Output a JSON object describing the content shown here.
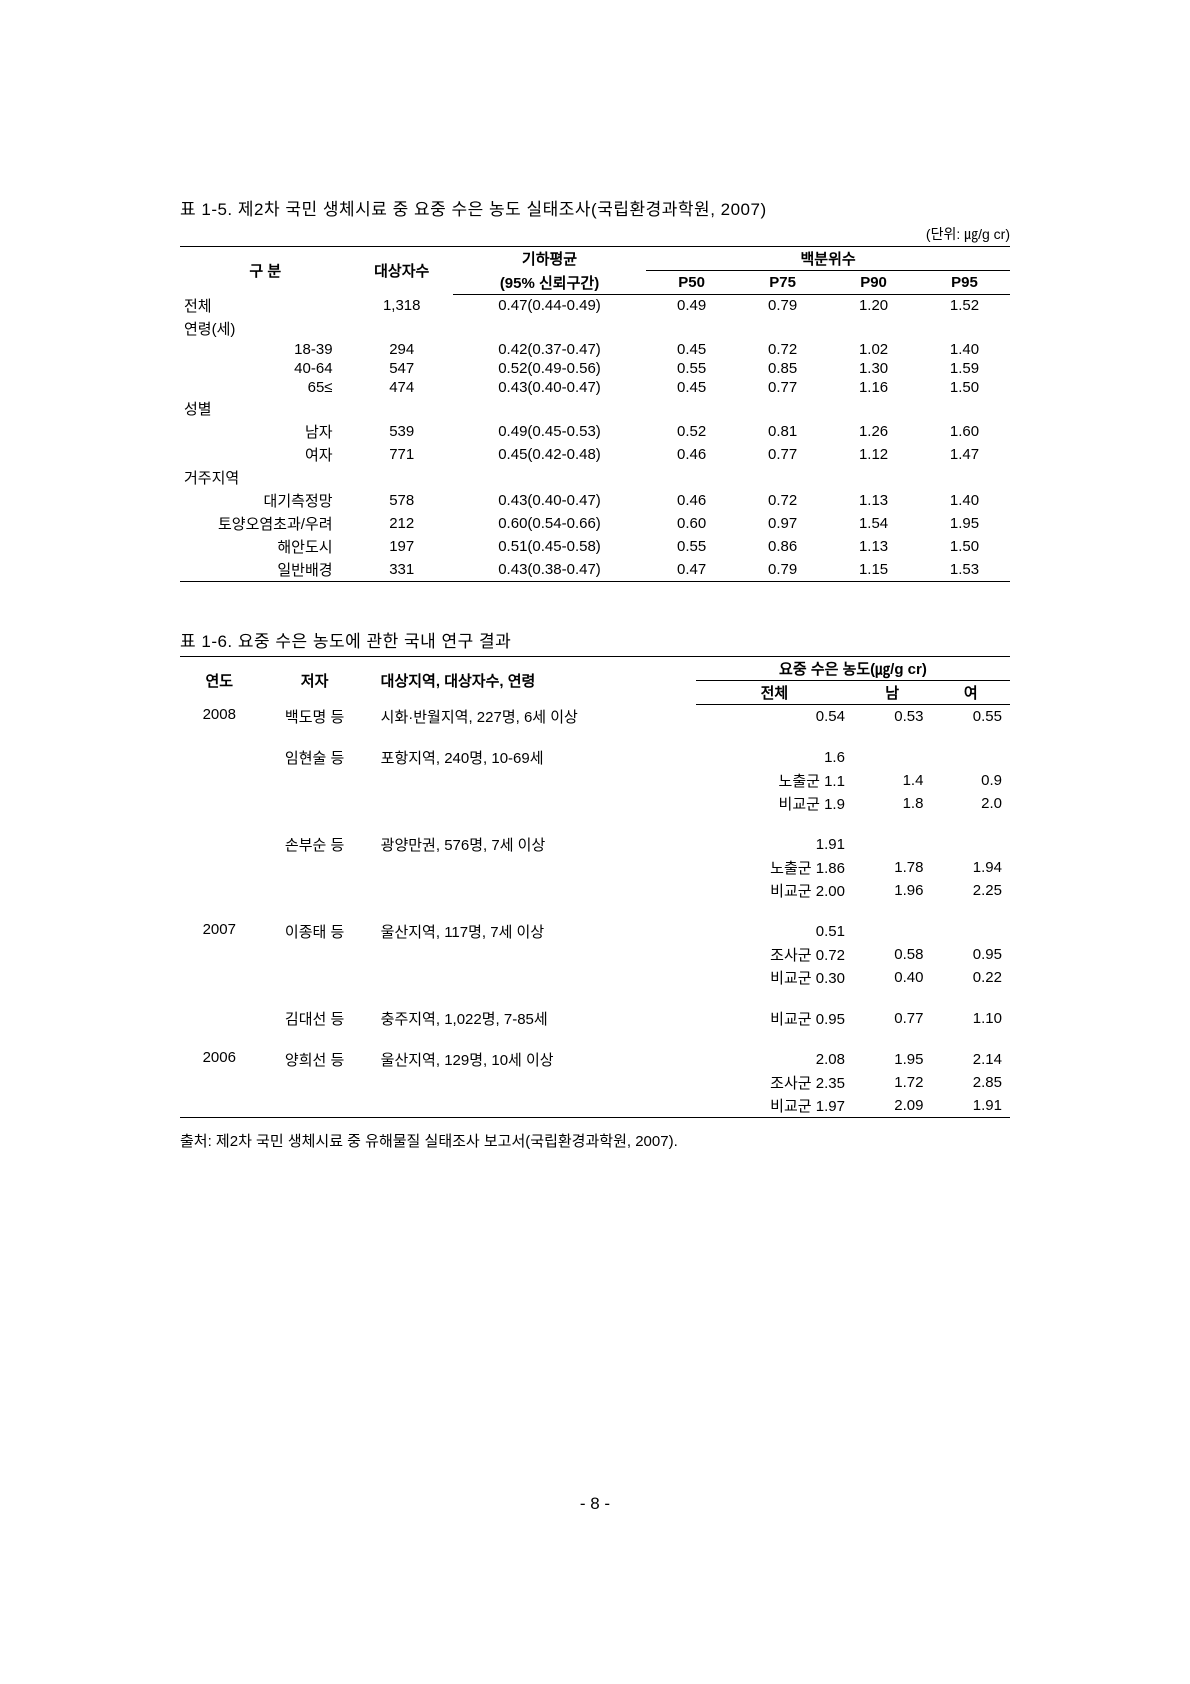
{
  "table1": {
    "title": "표 1-5. 제2차 국민 생체시료 중 요중 수은 농도 실태조사(국립환경과학원, 2007)",
    "unit": "(단위: ㎍/g cr)",
    "headers": {
      "category": "구   분",
      "n": "대상자수",
      "geomean": "기하평균",
      "ci": "(95% 신뢰구간)",
      "percentiles": "백분위수",
      "p50": "P50",
      "p75": "P75",
      "p90": "P90",
      "p95": "P95"
    },
    "rows": [
      {
        "label": "전체",
        "indent": 0,
        "n": "1,318",
        "gm": "0.47(0.44-0.49)",
        "p50": "0.49",
        "p75": "0.79",
        "p90": "1.20",
        "p95": "1.52"
      },
      {
        "label": "연령(세)",
        "indent": 0,
        "n": "",
        "gm": "",
        "p50": "",
        "p75": "",
        "p90": "",
        "p95": ""
      },
      {
        "label": "18-39",
        "indent": 1,
        "n": "294",
        "gm": "0.42(0.37-0.47)",
        "p50": "0.45",
        "p75": "0.72",
        "p90": "1.02",
        "p95": "1.40"
      },
      {
        "label": "40-64",
        "indent": 1,
        "n": "547",
        "gm": "0.52(0.49-0.56)",
        "p50": "0.55",
        "p75": "0.85",
        "p90": "1.30",
        "p95": "1.59"
      },
      {
        "label": "65≤",
        "indent": 1,
        "n": "474",
        "gm": "0.43(0.40-0.47)",
        "p50": "0.45",
        "p75": "0.77",
        "p90": "1.16",
        "p95": "1.50"
      },
      {
        "label": "성별",
        "indent": 0,
        "n": "",
        "gm": "",
        "p50": "",
        "p75": "",
        "p90": "",
        "p95": ""
      },
      {
        "label": "남자",
        "indent": 1,
        "n": "539",
        "gm": "0.49(0.45-0.53)",
        "p50": "0.52",
        "p75": "0.81",
        "p90": "1.26",
        "p95": "1.60"
      },
      {
        "label": "여자",
        "indent": 1,
        "n": "771",
        "gm": "0.45(0.42-0.48)",
        "p50": "0.46",
        "p75": "0.77",
        "p90": "1.12",
        "p95": "1.47"
      },
      {
        "label": "거주지역",
        "indent": 0,
        "n": "",
        "gm": "",
        "p50": "",
        "p75": "",
        "p90": "",
        "p95": ""
      },
      {
        "label": "대기측정망",
        "indent": 1,
        "n": "578",
        "gm": "0.43(0.40-0.47)",
        "p50": "0.46",
        "p75": "0.72",
        "p90": "1.13",
        "p95": "1.40"
      },
      {
        "label": "토양오염초과/우려",
        "indent": 1,
        "n": "212",
        "gm": "0.60(0.54-0.66)",
        "p50": "0.60",
        "p75": "0.97",
        "p90": "1.54",
        "p95": "1.95"
      },
      {
        "label": "해안도시",
        "indent": 1,
        "n": "197",
        "gm": "0.51(0.45-0.58)",
        "p50": "0.55",
        "p75": "0.86",
        "p90": "1.13",
        "p95": "1.50"
      },
      {
        "label": "일반배경",
        "indent": 1,
        "n": "331",
        "gm": "0.43(0.38-0.47)",
        "p50": "0.47",
        "p75": "0.79",
        "p90": "1.15",
        "p95": "1.53"
      }
    ]
  },
  "table2": {
    "title": "표 1-6. 요중 수은 농도에 관한 국내 연구 결과",
    "headers": {
      "year": "연도",
      "author": "저자",
      "desc": "대상지역, 대상자수, 연령",
      "conc": "요중 수은 농도(㎍/g cr)",
      "total": "전체",
      "male": "남",
      "female": "여"
    },
    "rows": [
      {
        "year": "2008",
        "author": "백도명 등",
        "desc": "시화·반월지역, 227명, 6세 이상",
        "total": "0.54",
        "male": "0.53",
        "female": "0.55",
        "pad": false
      },
      {
        "year": "",
        "author": "",
        "desc": "",
        "total": "",
        "male": "",
        "female": "",
        "pad": true
      },
      {
        "year": "",
        "author": "임현술 등",
        "desc": "포항지역, 240명, 10-69세",
        "total": "1.6",
        "male": "",
        "female": "",
        "pad": false
      },
      {
        "year": "",
        "author": "",
        "desc": "",
        "total": "노출군 1.1",
        "male": "1.4",
        "female": "0.9",
        "pad": false
      },
      {
        "year": "",
        "author": "",
        "desc": "",
        "total": "비교군 1.9",
        "male": "1.8",
        "female": "2.0",
        "pad": false
      },
      {
        "year": "",
        "author": "",
        "desc": "",
        "total": "",
        "male": "",
        "female": "",
        "pad": true
      },
      {
        "year": "",
        "author": "손부순 등",
        "desc": "광양만권, 576명, 7세 이상",
        "total": "1.91",
        "male": "",
        "female": "",
        "pad": false
      },
      {
        "year": "",
        "author": "",
        "desc": "",
        "total": "노출군 1.86",
        "male": "1.78",
        "female": "1.94",
        "pad": false
      },
      {
        "year": "",
        "author": "",
        "desc": "",
        "total": "비교군 2.00",
        "male": "1.96",
        "female": "2.25",
        "pad": false
      },
      {
        "year": "",
        "author": "",
        "desc": "",
        "total": "",
        "male": "",
        "female": "",
        "pad": true
      },
      {
        "year": "2007",
        "author": "이종태 등",
        "desc": "울산지역, 117명, 7세 이상",
        "total": "0.51",
        "male": "",
        "female": "",
        "pad": false
      },
      {
        "year": "",
        "author": "",
        "desc": "",
        "total": "조사군 0.72",
        "male": "0.58",
        "female": "0.95",
        "pad": false
      },
      {
        "year": "",
        "author": "",
        "desc": "",
        "total": "비교군 0.30",
        "male": "0.40",
        "female": "0.22",
        "pad": false
      },
      {
        "year": "",
        "author": "",
        "desc": "",
        "total": "",
        "male": "",
        "female": "",
        "pad": true
      },
      {
        "year": "",
        "author": "김대선 등",
        "desc": "충주지역, 1,022명, 7-85세",
        "total": "비교군 0.95",
        "male": "0.77",
        "female": "1.10",
        "pad": false
      },
      {
        "year": "",
        "author": "",
        "desc": "",
        "total": "",
        "male": "",
        "female": "",
        "pad": true
      },
      {
        "year": "2006",
        "author": "양희선 등",
        "desc": "울산지역, 129명, 10세 이상",
        "total": "2.08",
        "male": "1.95",
        "female": "2.14",
        "pad": false
      },
      {
        "year": "",
        "author": "",
        "desc": "",
        "total": "조사군 2.35",
        "male": "1.72",
        "female": "2.85",
        "pad": false
      },
      {
        "year": "",
        "author": "",
        "desc": "",
        "total": "비교군 1.97",
        "male": "2.09",
        "female": "1.91",
        "pad": false
      }
    ],
    "source": "출처: 제2차 국민 생체시료 중 유해물질 실태조사 보고서(국립환경과학원, 2007)."
  },
  "page_number": "- 8 -"
}
